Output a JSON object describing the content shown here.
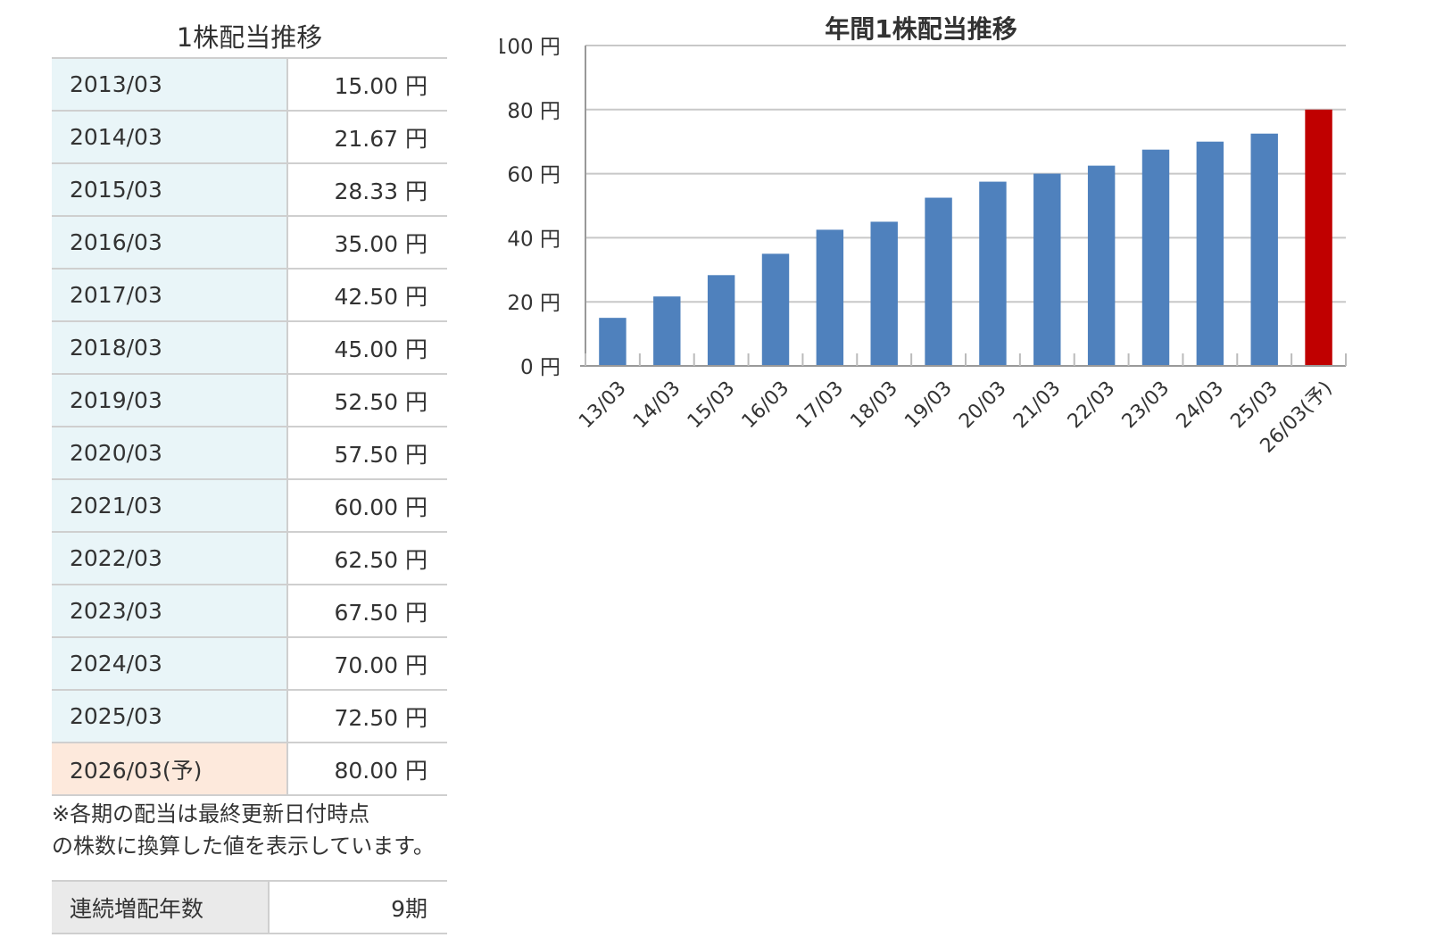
{
  "table": {
    "title": "1株配当推移",
    "rows": [
      {
        "period": "2013/03",
        "amount": "15.00 円"
      },
      {
        "period": "2014/03",
        "amount": "21.67 円"
      },
      {
        "period": "2015/03",
        "amount": "28.33 円"
      },
      {
        "period": "2016/03",
        "amount": "35.00 円"
      },
      {
        "period": "2017/03",
        "amount": "42.50 円"
      },
      {
        "period": "2018/03",
        "amount": "45.00 円"
      },
      {
        "period": "2019/03",
        "amount": "52.50 円"
      },
      {
        "period": "2020/03",
        "amount": "57.50 円"
      },
      {
        "period": "2021/03",
        "amount": "60.00 円"
      },
      {
        "period": "2022/03",
        "amount": "62.50 円"
      },
      {
        "period": "2023/03",
        "amount": "67.50 円"
      },
      {
        "period": "2024/03",
        "amount": "70.00 円"
      },
      {
        "period": "2025/03",
        "amount": "72.50 円"
      },
      {
        "period": "2026/03(予)",
        "amount": "80.00 円",
        "forecast": true
      }
    ],
    "note_line1": "※各期の配当は最終更新日付時点",
    "note_line2": "の株数に換算した値を表示しています。"
  },
  "streak": {
    "label": "連続増配年数",
    "value": "9期"
  },
  "colors": {
    "bar": "#4f81bd",
    "forecast_bar": "#c00000",
    "period_bg": "#e9f5f8",
    "forecast_bg": "#fde9dc",
    "grid": "#c8c8c8"
  },
  "chart_data": {
    "type": "bar",
    "title": "年間1株配当推移",
    "categories": [
      "13/03",
      "14/03",
      "15/03",
      "16/03",
      "17/03",
      "18/03",
      "19/03",
      "20/03",
      "21/03",
      "22/03",
      "23/03",
      "24/03",
      "25/03",
      "26/03(予)"
    ],
    "values": [
      15.0,
      21.67,
      28.33,
      35.0,
      42.5,
      45.0,
      52.5,
      57.5,
      60.0,
      62.5,
      67.5,
      70.0,
      72.5,
      80.0
    ],
    "forecast_flags": [
      false,
      false,
      false,
      false,
      false,
      false,
      false,
      false,
      false,
      false,
      false,
      false,
      false,
      true
    ],
    "yticks": [
      0,
      20,
      40,
      60,
      80,
      100
    ],
    "ytick_suffix": " 円",
    "ylim": [
      0,
      100
    ],
    "grid": true,
    "xlabel": "",
    "ylabel": ""
  }
}
